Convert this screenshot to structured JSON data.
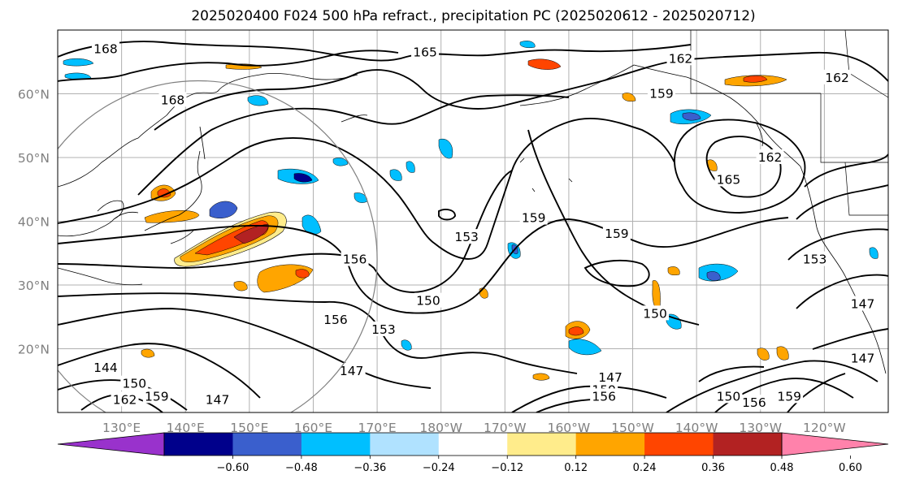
{
  "title": "2025020400 F024 500 hPa refract., precipitation PC (2025020612 - 2025020712)",
  "map": {
    "projection": "plate-carree",
    "lon_range": [
      120,
      250
    ],
    "lat_range": [
      10,
      70
    ],
    "lat_ticks": [
      {
        "lat": 20,
        "label": "20°N"
      },
      {
        "lat": 30,
        "label": "30°N"
      },
      {
        "lat": 40,
        "label": "40°N"
      },
      {
        "lat": 50,
        "label": "50°N"
      },
      {
        "lat": 60,
        "label": "60°N"
      }
    ],
    "lon_ticks": [
      {
        "lon": 130,
        "label": "130°E"
      },
      {
        "lon": 140,
        "label": "140°E"
      },
      {
        "lon": 150,
        "label": "150°E"
      },
      {
        "lon": 160,
        "label": "160°E"
      },
      {
        "lon": 170,
        "label": "170°E"
      },
      {
        "lon": 180,
        "label": "180°W"
      },
      {
        "lon": 190,
        "label": "170°W"
      },
      {
        "lon": 200,
        "label": "160°W"
      },
      {
        "lon": 210,
        "label": "150°W"
      },
      {
        "lon": 220,
        "label": "140°W"
      },
      {
        "lon": 230,
        "label": "130°W"
      },
      {
        "lon": 240,
        "label": "120°W"
      }
    ],
    "grid": true,
    "circle": {
      "center_lon": 142,
      "center_lat": 34,
      "radius_deg": 28
    }
  },
  "contours": {
    "field": "500 hPa refractivity",
    "labels": [
      {
        "text": "168",
        "lon": 127.5,
        "lat": 67
      },
      {
        "text": "168",
        "lon": 138,
        "lat": 59
      },
      {
        "text": "165",
        "lon": 177.5,
        "lat": 66.5
      },
      {
        "text": "162",
        "lon": 217.5,
        "lat": 65.5
      },
      {
        "text": "159",
        "lon": 214.5,
        "lat": 60
      },
      {
        "text": "162",
        "lon": 242,
        "lat": 62.5
      },
      {
        "text": "165",
        "lon": 225,
        "lat": 46.5
      },
      {
        "text": "162",
        "lon": 231.5,
        "lat": 50
      },
      {
        "text": "159",
        "lon": 194.5,
        "lat": 40.5
      },
      {
        "text": "153",
        "lon": 184,
        "lat": 37.5
      },
      {
        "text": "159",
        "lon": 207.5,
        "lat": 38
      },
      {
        "text": "156",
        "lon": 166.5,
        "lat": 34
      },
      {
        "text": "156",
        "lon": 163.5,
        "lat": 24.5
      },
      {
        "text": "150",
        "lon": 178,
        "lat": 27.5
      },
      {
        "text": "153",
        "lon": 171,
        "lat": 23
      },
      {
        "text": "150",
        "lon": 213.5,
        "lat": 25.5
      },
      {
        "text": "153",
        "lon": 238.5,
        "lat": 34
      },
      {
        "text": "147",
        "lon": 246,
        "lat": 27
      },
      {
        "text": "147",
        "lon": 246,
        "lat": 18.5
      },
      {
        "text": "147",
        "lon": 166,
        "lat": 16.5
      },
      {
        "text": "147",
        "lon": 145,
        "lat": 12
      },
      {
        "text": "144",
        "lon": 127.5,
        "lat": 17
      },
      {
        "text": "147",
        "lon": 206.5,
        "lat": 15.5
      },
      {
        "text": "159",
        "lon": 205.5,
        "lat": 13.5
      },
      {
        "text": "156",
        "lon": 205.5,
        "lat": 12.5
      },
      {
        "text": "150",
        "lon": 225,
        "lat": 12.5
      },
      {
        "text": "156",
        "lon": 229,
        "lat": 11.5
      },
      {
        "text": "159",
        "lon": 234.5,
        "lat": 12.5
      },
      {
        "text": "150",
        "lon": 132,
        "lat": 14.5
      },
      {
        "text": "162",
        "lon": 130.5,
        "lat": 12
      },
      {
        "text": "159",
        "lon": 135.5,
        "lat": 12.5
      }
    ]
  },
  "colorbar": {
    "colors": [
      "#9932CC",
      "#00008B",
      "#3A5FCD",
      "#00BFFF",
      "#B0E2FF",
      "#FFFFFF",
      "#FFEC8B",
      "#FFA500",
      "#FF4500",
      "#B22222",
      "#FF82AB"
    ],
    "ticks": [
      "−0.60",
      "−0.48",
      "−0.36",
      "−0.24",
      "−0.12",
      "0.12",
      "0.24",
      "0.36",
      "0.48",
      "0.60"
    ],
    "extend": "both"
  },
  "icons": {
    "coastlines": "coastline-lines",
    "borders": "political-border-lines"
  }
}
